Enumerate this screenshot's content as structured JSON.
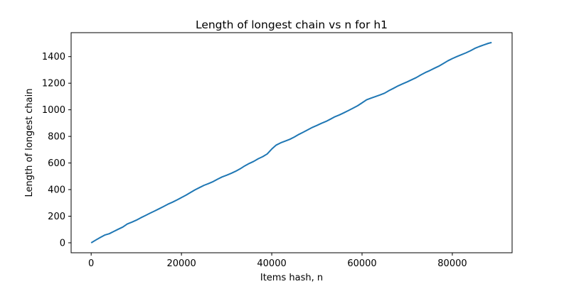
{
  "chart_data": {
    "type": "line",
    "title": "Length of longest chain vs n for h1",
    "xlabel": "Items hash, n",
    "ylabel": "Length of longest chain",
    "xlim": [
      -4440,
      93240
    ],
    "ylim": [
      -75,
      1580
    ],
    "xticks": [
      0,
      20000,
      40000,
      60000,
      80000
    ],
    "yticks": [
      0,
      200,
      400,
      600,
      800,
      1000,
      1200,
      1400
    ],
    "grid": false,
    "series_color": "#1f77b4",
    "series": [
      {
        "x": [
          0,
          1000,
          2000,
          3000,
          4000,
          5000,
          6000,
          7000,
          8000,
          9000,
          10000,
          11000,
          12000,
          13000,
          14000,
          15000,
          16000,
          17000,
          18000,
          19000,
          20000,
          21000,
          22000,
          23000,
          24000,
          25000,
          26000,
          27000,
          28000,
          29000,
          30000,
          31000,
          32000,
          33000,
          34000,
          35000,
          36000,
          37000,
          38000,
          39000,
          40000,
          41000,
          42000,
          43000,
          44000,
          45000,
          46000,
          47000,
          48000,
          49000,
          50000,
          51000,
          52000,
          53000,
          54000,
          55000,
          56000,
          57000,
          58000,
          59000,
          60000,
          61000,
          62000,
          63000,
          64000,
          65000,
          66000,
          67000,
          68000,
          69000,
          70000,
          71000,
          72000,
          73000,
          74000,
          75000,
          76000,
          77000,
          78000,
          79000,
          80000,
          81000,
          82000,
          83000,
          84000,
          85000,
          86000,
          87000,
          88000,
          88700
        ],
        "y": [
          0,
          20,
          40,
          58,
          68,
          85,
          102,
          118,
          142,
          155,
          170,
          188,
          205,
          222,
          238,
          255,
          272,
          290,
          305,
          322,
          340,
          358,
          378,
          398,
          415,
          432,
          445,
          460,
          478,
          495,
          508,
          522,
          538,
          556,
          578,
          596,
          612,
          632,
          648,
          668,
          705,
          735,
          752,
          765,
          778,
          795,
          815,
          832,
          850,
          868,
          882,
          898,
          912,
          930,
          948,
          962,
          978,
          995,
          1012,
          1030,
          1052,
          1075,
          1088,
          1100,
          1112,
          1125,
          1145,
          1162,
          1180,
          1195,
          1210,
          1226,
          1242,
          1262,
          1280,
          1295,
          1312,
          1328,
          1348,
          1368,
          1385,
          1400,
          1414,
          1428,
          1444,
          1462,
          1476,
          1488,
          1500,
          1506
        ]
      }
    ]
  }
}
